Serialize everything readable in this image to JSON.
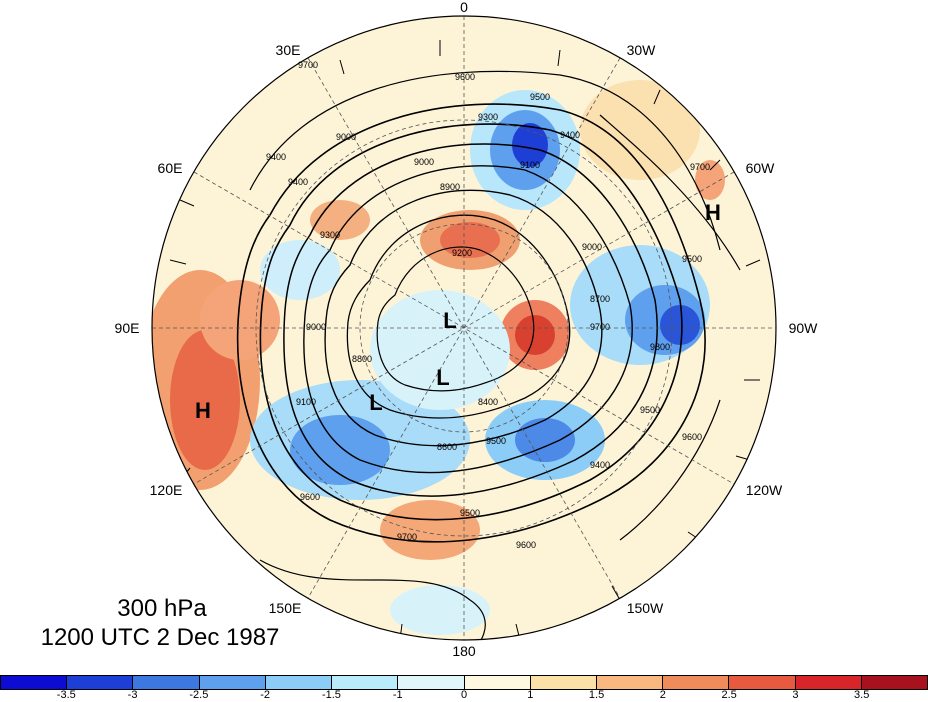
{
  "title": {
    "level": "300 hPa",
    "time": "1200 UTC 2 Dec 1987"
  },
  "longitude_labels": [
    {
      "key": "0",
      "text": "0"
    },
    {
      "key": "30W",
      "text": "30W"
    },
    {
      "key": "60W",
      "text": "60W"
    },
    {
      "key": "90W",
      "text": "90W"
    },
    {
      "key": "120W",
      "text": "120W"
    },
    {
      "key": "150W",
      "text": "150W"
    },
    {
      "key": "180",
      "text": "180"
    },
    {
      "key": "150E",
      "text": "150E"
    },
    {
      "key": "120E",
      "text": "120E"
    },
    {
      "key": "90E",
      "text": "90E"
    },
    {
      "key": "60E",
      "text": "60E"
    },
    {
      "key": "30E",
      "text": "30E"
    }
  ],
  "pressure_centers": [
    "H",
    "H",
    "L",
    "L",
    "L"
  ],
  "contour_labels": [
    "9700",
    "9600",
    "9500",
    "9400",
    "9300",
    "9100",
    "9000",
    "8900",
    "9200",
    "9000",
    "8800",
    "9000",
    "8700",
    "9100",
    "9500",
    "9600",
    "9700",
    "9500",
    "9600",
    "9400",
    "8400",
    "8600",
    "9500",
    "9400",
    "9600",
    "9500",
    "9400",
    "9700",
    "9300",
    "9000",
    "9700",
    "9800"
  ],
  "colorbar": {
    "colors": [
      "#0c0cd2",
      "#1e3fd6",
      "#3c78e0",
      "#5ea0ee",
      "#8ccdf8",
      "#b8ecfb",
      "#e0f6fb",
      "#fef8e0",
      "#fbe0a8",
      "#f9b880",
      "#f08c5c",
      "#e85a40",
      "#d8252a",
      "#a8121e"
    ],
    "tick_labels": [
      "-3.5",
      "-3",
      "-2.5",
      "-2",
      "-1.5",
      "-1",
      "0",
      "1",
      "1.5",
      "2",
      "2.5",
      "3",
      "3.5"
    ]
  }
}
